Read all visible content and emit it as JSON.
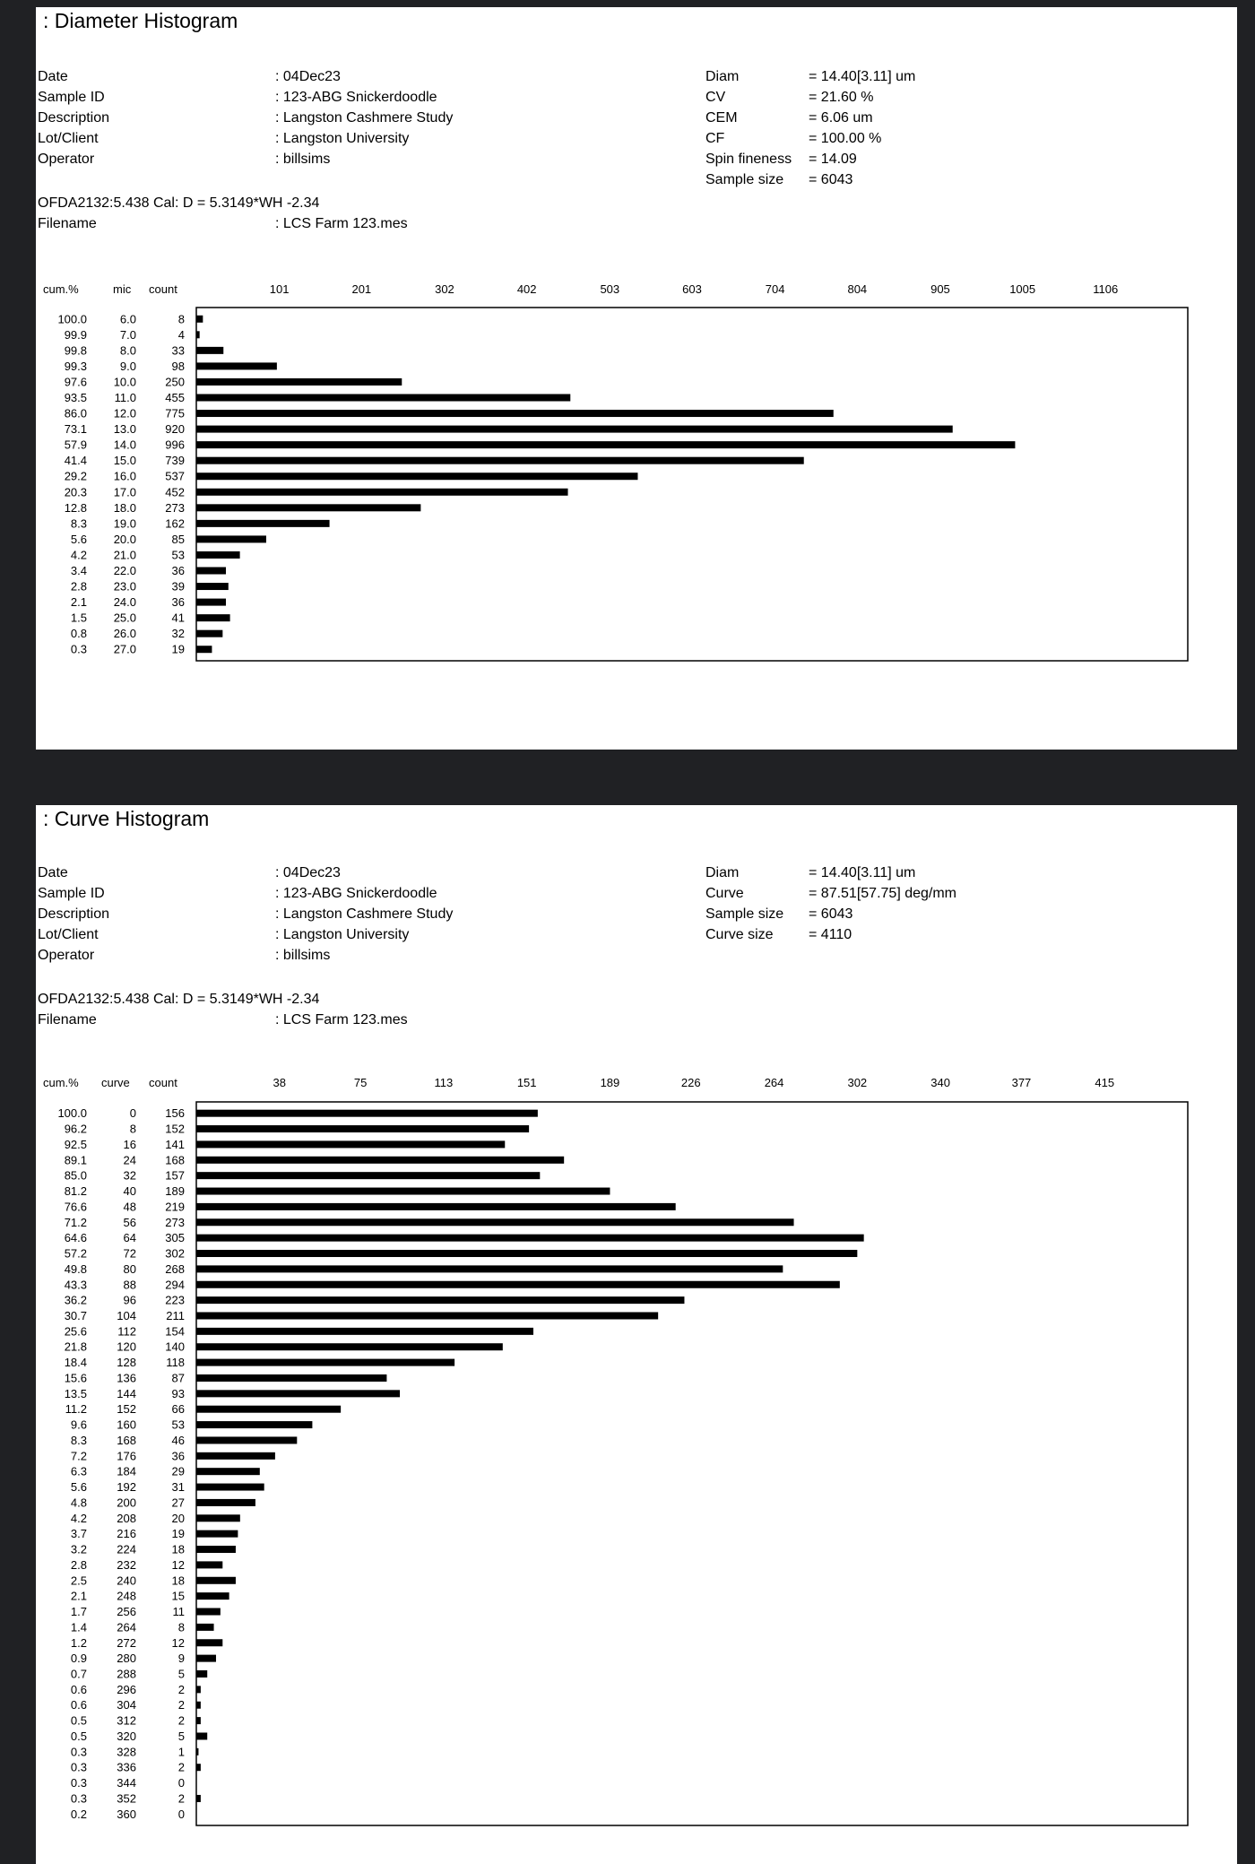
{
  "diameter": {
    "title": ": Diameter Histogram",
    "info_labels": [
      "Date",
      "Sample ID",
      "Description",
      "Lot/Client",
      "Operator"
    ],
    "info_values": [
      ": 04Dec23",
      ": 123-ABG Snickerdoodle",
      ": Langston Cashmere Study",
      ": Langston University",
      ": billsims"
    ],
    "stat_labels": [
      "Diam",
      "CV",
      "CEM",
      "CF",
      "Spin fineness",
      "Sample size"
    ],
    "stat_values": [
      "= 14.40[3.11] um",
      "= 21.60 %",
      "= 6.06 um",
      "= 100.00 %",
      "= 14.09",
      "= 6043"
    ],
    "cal_line": "OFDA2132:5.438 Cal: D = 5.3149*WH -2.34",
    "filename_label": "Filename",
    "filename_value": ": LCS Farm 123.mes",
    "col_cum": "cum.%",
    "col_x": "mic",
    "col_count": "count"
  },
  "curve": {
    "title": ": Curve Histogram",
    "info_labels": [
      "Date",
      "Sample ID",
      "Description",
      "Lot/Client",
      "Operator"
    ],
    "info_values": [
      ": 04Dec23",
      ": 123-ABG Snickerdoodle",
      ": Langston Cashmere Study",
      ": Langston University",
      ": billsims"
    ],
    "stat_labels": [
      "Diam",
      "Curve",
      "Sample size",
      "Curve size"
    ],
    "stat_values": [
      "= 14.40[3.11] um",
      "= 87.51[57.75] deg/mm",
      "= 6043",
      "= 4110"
    ],
    "cal_line": "OFDA2132:5.438 Cal: D = 5.3149*WH -2.34",
    "filename_label": "Filename",
    "filename_value": ": LCS Farm 123.mes",
    "col_cum": "cum.%",
    "col_x": "curve",
    "col_count": "count"
  },
  "chart_data": [
    {
      "type": "bar",
      "orientation": "horizontal",
      "title": ": Diameter Histogram",
      "xlim": [
        0,
        1206
      ],
      "xticks": [
        "101",
        "201",
        "302",
        "402",
        "503",
        "603",
        "704",
        "804",
        "905",
        "1005",
        "1106"
      ],
      "categories": [
        "6.0",
        "7.0",
        "8.0",
        "9.0",
        "10.0",
        "11.0",
        "12.0",
        "13.0",
        "14.0",
        "15.0",
        "16.0",
        "17.0",
        "18.0",
        "19.0",
        "20.0",
        "21.0",
        "22.0",
        "23.0",
        "24.0",
        "25.0",
        "26.0",
        "27.0"
      ],
      "cum": [
        "100.0",
        "99.9",
        "99.8",
        "99.3",
        "97.6",
        "93.5",
        "86.0",
        "73.1",
        "57.9",
        "41.4",
        "29.2",
        "20.3",
        "12.8",
        "8.3",
        "5.6",
        "4.2",
        "3.4",
        "2.8",
        "2.1",
        "1.5",
        "0.8",
        "0.3"
      ],
      "values": [
        8,
        4,
        33,
        98,
        250,
        455,
        775,
        920,
        996,
        739,
        537,
        452,
        273,
        162,
        85,
        53,
        36,
        39,
        36,
        41,
        32,
        19
      ]
    },
    {
      "type": "bar",
      "orientation": "horizontal",
      "title": ": Curve Histogram",
      "xlim": [
        0,
        453
      ],
      "xticks": [
        "38",
        "75",
        "113",
        "151",
        "189",
        "226",
        "264",
        "302",
        "340",
        "377",
        "415"
      ],
      "categories": [
        "0",
        "8",
        "16",
        "24",
        "32",
        "40",
        "48",
        "56",
        "64",
        "72",
        "80",
        "88",
        "96",
        "104",
        "112",
        "120",
        "128",
        "136",
        "144",
        "152",
        "160",
        "168",
        "176",
        "184",
        "192",
        "200",
        "208",
        "216",
        "224",
        "232",
        "240",
        "248",
        "256",
        "264",
        "272",
        "280",
        "288",
        "296",
        "304",
        "312",
        "320",
        "328",
        "336",
        "344",
        "352",
        "360"
      ],
      "cum": [
        "100.0",
        "96.2",
        "92.5",
        "89.1",
        "85.0",
        "81.2",
        "76.6",
        "71.2",
        "64.6",
        "57.2",
        "49.8",
        "43.3",
        "36.2",
        "30.7",
        "25.6",
        "21.8",
        "18.4",
        "15.6",
        "13.5",
        "11.2",
        "9.6",
        "8.3",
        "7.2",
        "6.3",
        "5.6",
        "4.8",
        "4.2",
        "3.7",
        "3.2",
        "2.8",
        "2.5",
        "2.1",
        "1.7",
        "1.4",
        "1.2",
        "0.9",
        "0.7",
        "0.6",
        "0.6",
        "0.5",
        "0.5",
        "0.3",
        "0.3",
        "0.3",
        "0.3",
        "0.2"
      ],
      "values": [
        156,
        152,
        141,
        168,
        157,
        189,
        219,
        273,
        305,
        302,
        268,
        294,
        223,
        211,
        154,
        140,
        118,
        87,
        93,
        66,
        53,
        46,
        36,
        29,
        31,
        27,
        20,
        19,
        18,
        12,
        18,
        15,
        11,
        8,
        12,
        9,
        5,
        2,
        2,
        2,
        5,
        1,
        2,
        0,
        2,
        0
      ]
    }
  ]
}
